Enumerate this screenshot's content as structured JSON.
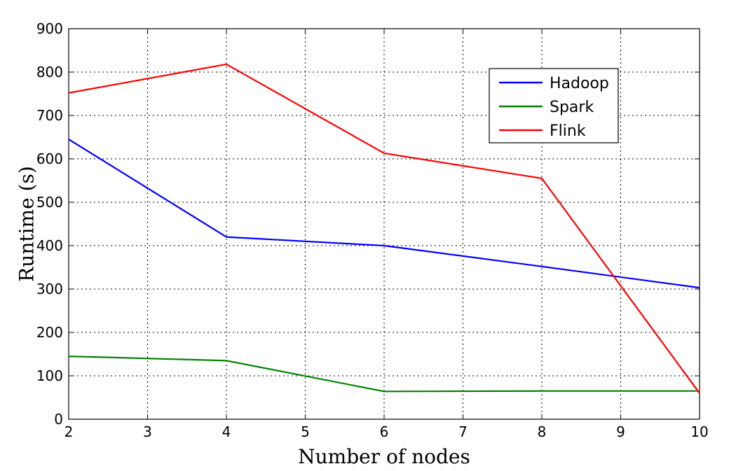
{
  "chart_data": {
    "type": "line",
    "xlabel": "Number of nodes",
    "ylabel": "Runtime (s)",
    "xlim": [
      2,
      10
    ],
    "ylim": [
      0,
      900
    ],
    "xticks": [
      2,
      3,
      4,
      5,
      6,
      7,
      8,
      9,
      10
    ],
    "yticks": [
      0,
      100,
      200,
      300,
      400,
      500,
      600,
      700,
      800,
      900
    ],
    "grid": true,
    "legend_position": "top-right",
    "x": [
      2,
      4,
      6,
      8,
      10
    ],
    "series": [
      {
        "name": "Hadoop",
        "color": "#0000ff",
        "values": [
          645,
          420,
          400,
          352,
          303
        ]
      },
      {
        "name": "Spark",
        "color": "#008000",
        "values": [
          145,
          135,
          64,
          65,
          65
        ]
      },
      {
        "name": "Flink",
        "color": "#ff0000",
        "values": [
          752,
          818,
          613,
          555,
          60
        ]
      }
    ]
  }
}
